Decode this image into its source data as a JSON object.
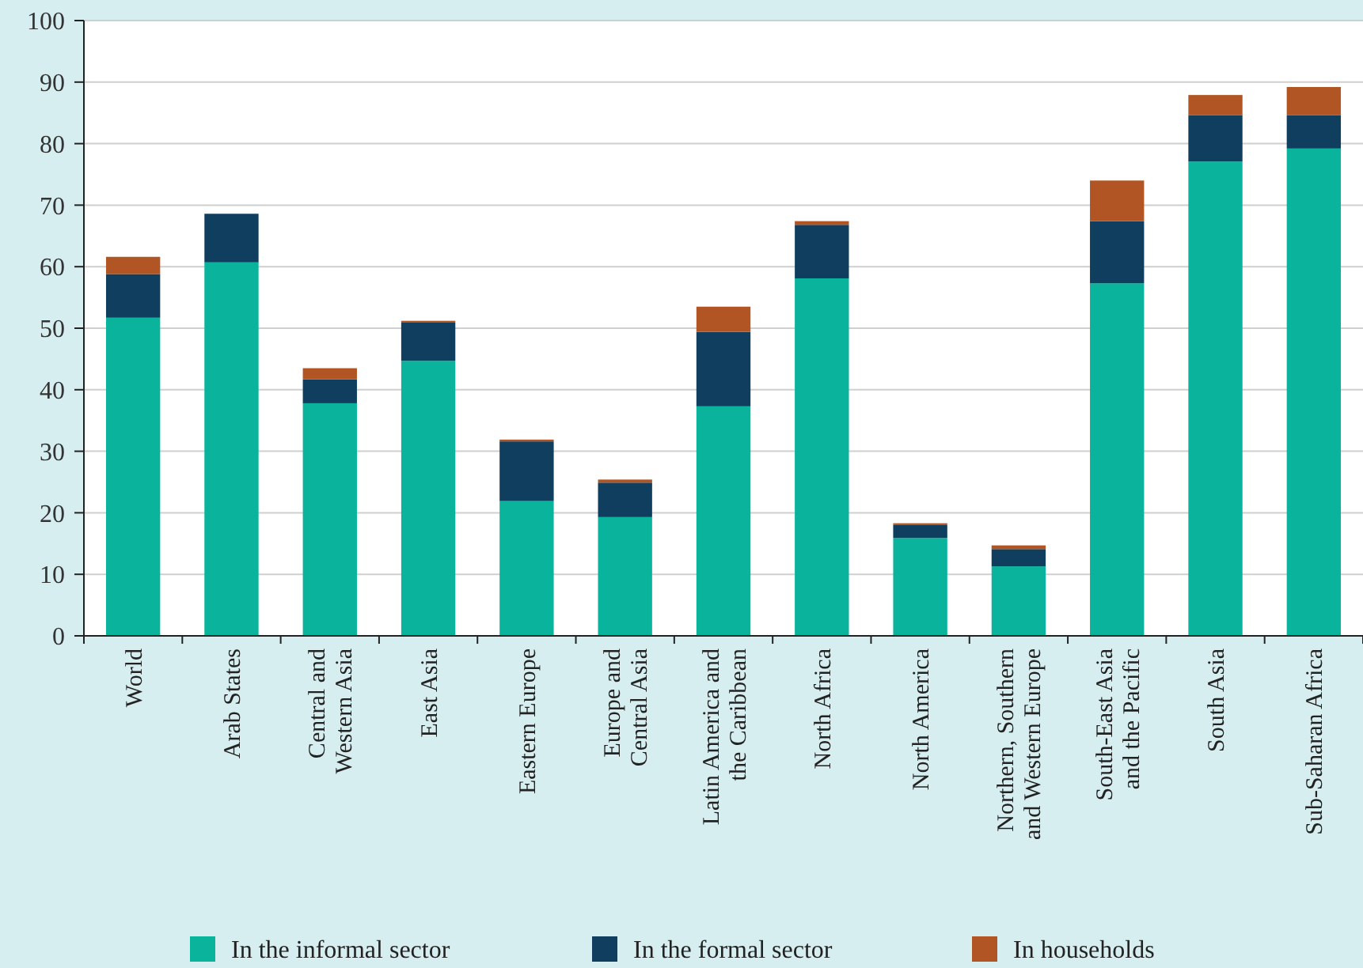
{
  "chart_data": {
    "type": "bar",
    "stacked": true,
    "categories": [
      "World",
      "Arab States",
      "Central and Western Asia",
      "East Asia",
      "Eastern Europe",
      "Europe and Central Asia",
      "Latin America and the Caribbean",
      "North Africa",
      "North America",
      "Northern, Southern and Western Europe",
      "South-East Asia and the Pacific",
      "South Asia",
      "Sub-Saharan Africa"
    ],
    "series": [
      {
        "name": "In the informal sector",
        "color": "#0ab39c",
        "values": [
          51.7,
          60.7,
          37.8,
          44.7,
          21.9,
          19.3,
          37.3,
          58.1,
          15.9,
          11.3,
          57.3,
          77.1,
          79.2
        ]
      },
      {
        "name": "In the formal sector",
        "color": "#0f3e5e",
        "values": [
          7.1,
          7.9,
          3.9,
          6.2,
          9.7,
          5.6,
          12.1,
          8.7,
          2.1,
          2.8,
          10.1,
          7.5,
          5.4
        ]
      },
      {
        "name": "In households",
        "color": "#b05523",
        "values": [
          2.8,
          0,
          1.8,
          0.3,
          0.3,
          0.5,
          4.1,
          0.6,
          0.3,
          0.6,
          6.6,
          3.3,
          4.6
        ]
      }
    ],
    "ylim": [
      0,
      100
    ],
    "yticks": [
      0,
      10,
      20,
      30,
      40,
      50,
      60,
      70,
      80,
      90,
      100
    ],
    "grid": "y",
    "legend": "bottom"
  }
}
